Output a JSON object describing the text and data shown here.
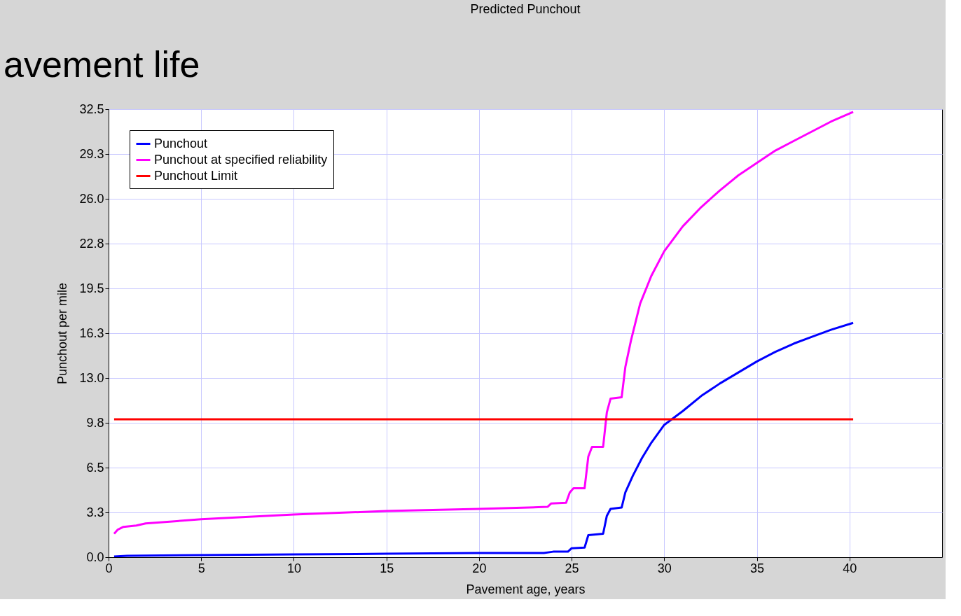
{
  "chart_data": {
    "type": "line",
    "title": "Predicted Punchout",
    "xlabel": "Pavement age, years",
    "ylabel": "Punchout per mile",
    "annotations": [
      "avement life"
    ],
    "xlim": [
      0,
      45
    ],
    "xticks": [
      0,
      5,
      10,
      15,
      20,
      25,
      30,
      35,
      40
    ],
    "ylim": [
      0,
      32.5
    ],
    "yticks": [
      {
        "value": 0,
        "label": "0.0"
      },
      {
        "value": 3.25,
        "label": "3.3"
      },
      {
        "value": 6.5,
        "label": "6.5"
      },
      {
        "value": 9.75,
        "label": "9.8"
      },
      {
        "value": 13,
        "label": "13.0"
      },
      {
        "value": 16.25,
        "label": "16.3"
      },
      {
        "value": 19.5,
        "label": "19.5"
      },
      {
        "value": 22.75,
        "label": "22.8"
      },
      {
        "value": 26,
        "label": "26.0"
      },
      {
        "value": 29.25,
        "label": "29.3"
      },
      {
        "value": 32.5,
        "label": "32.5"
      }
    ],
    "grid": true,
    "legend": "top left",
    "line_style": "solid",
    "marker": "none",
    "series": [
      {
        "name": "Punchout",
        "color": "#0000ff",
        "x": [
          0.3,
          1,
          5,
          10,
          15,
          20,
          23.5,
          24,
          24.8,
          25,
          25.7,
          25.9,
          26.7,
          26.9,
          27.1,
          27.7,
          27.9,
          28.3,
          28.8,
          29.3,
          30,
          31,
          32,
          33,
          34,
          35,
          36,
          37,
          38,
          39,
          40.2
        ],
        "values": [
          0.05,
          0.1,
          0.15,
          0.2,
          0.25,
          0.3,
          0.3,
          0.4,
          0.4,
          0.65,
          0.7,
          1.6,
          1.7,
          3.0,
          3.5,
          3.6,
          4.7,
          5.9,
          7.2,
          8.3,
          9.6,
          10.6,
          11.7,
          12.6,
          13.4,
          14.2,
          14.9,
          15.5,
          16.0,
          16.5,
          17.0
        ]
      },
      {
        "name": "Punchout at specified reliability",
        "color": "#ff00ff",
        "x": [
          0.3,
          0.5,
          0.8,
          1.5,
          2,
          5,
          10,
          15,
          20,
          23.7,
          23.9,
          24.7,
          24.9,
          25.1,
          25.7,
          25.9,
          26.1,
          26.7,
          26.9,
          27.1,
          27.7,
          27.9,
          28.2,
          28.7,
          29.3,
          30,
          31,
          32,
          33,
          34,
          35,
          36,
          37,
          38,
          39,
          40.2
        ],
        "values": [
          1.7,
          2.0,
          2.2,
          2.3,
          2.45,
          2.75,
          3.1,
          3.35,
          3.5,
          3.65,
          3.9,
          3.95,
          4.7,
          5.0,
          5.0,
          7.3,
          8.0,
          8.0,
          10.5,
          11.5,
          11.6,
          13.8,
          15.7,
          18.4,
          20.4,
          22.2,
          24.0,
          25.4,
          26.6,
          27.7,
          28.6,
          29.5,
          30.2,
          30.9,
          31.6,
          32.3
        ]
      },
      {
        "name": "Punchout Limit",
        "color": "#ff0000",
        "x": [
          0.3,
          40.2
        ],
        "values": [
          10,
          10
        ]
      }
    ]
  }
}
